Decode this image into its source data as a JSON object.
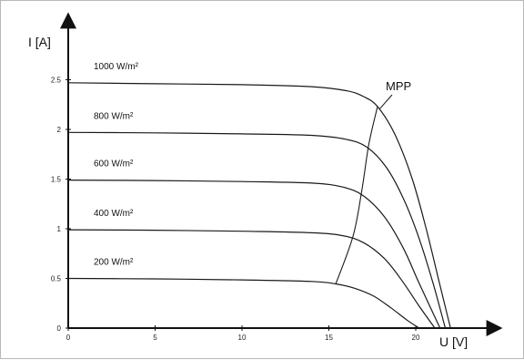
{
  "chart_data": {
    "type": "line",
    "title": "",
    "ylabel": "I [A]",
    "xlabel": "U [V]",
    "xlim": [
      0,
      24.5
    ],
    "ylim": [
      0,
      2.85
    ],
    "x_ticks": [
      {
        "value": 0,
        "label": "0"
      },
      {
        "value": 5,
        "label": "5"
      },
      {
        "value": 10,
        "label": "10"
      },
      {
        "value": 15,
        "label": "15"
      },
      {
        "value": 20,
        "label": "20"
      }
    ],
    "y_ticks": [
      {
        "value": 0,
        "label": "0"
      },
      {
        "value": 0.5,
        "label": "0.5"
      },
      {
        "value": 1,
        "label": "1"
      },
      {
        "value": 1.5,
        "label": "1.5"
      },
      {
        "value": 2,
        "label": "2"
      },
      {
        "value": 2.5,
        "label": "2.5"
      }
    ],
    "grid": false,
    "series": [
      {
        "name": "1000 W/m²",
        "isc": 2.47,
        "voc": 22.0,
        "points": [
          [
            0,
            2.47
          ],
          [
            5,
            2.46
          ],
          [
            10,
            2.45
          ],
          [
            14,
            2.43
          ],
          [
            16,
            2.39
          ],
          [
            17,
            2.33
          ],
          [
            17.8,
            2.23
          ],
          [
            18.8,
            1.95
          ],
          [
            19.8,
            1.5
          ],
          [
            20.6,
            1.0
          ],
          [
            21.3,
            0.5
          ],
          [
            22.0,
            0
          ]
        ]
      },
      {
        "name": "800 W/m²",
        "isc": 1.97,
        "voc": 21.7,
        "points": [
          [
            0,
            1.97
          ],
          [
            5,
            1.965
          ],
          [
            10,
            1.955
          ],
          [
            14,
            1.94
          ],
          [
            16,
            1.9
          ],
          [
            17.2,
            1.82
          ],
          [
            18.3,
            1.62
          ],
          [
            19.3,
            1.3
          ],
          [
            20.2,
            0.9
          ],
          [
            21.0,
            0.45
          ],
          [
            21.7,
            0
          ]
        ]
      },
      {
        "name": "600 W/m²",
        "isc": 1.49,
        "voc": 21.4,
        "points": [
          [
            0,
            1.49
          ],
          [
            5,
            1.485
          ],
          [
            10,
            1.475
          ],
          [
            14,
            1.46
          ],
          [
            15.8,
            1.42
          ],
          [
            17.0,
            1.33
          ],
          [
            18.2,
            1.12
          ],
          [
            19.3,
            0.8
          ],
          [
            20.2,
            0.45
          ],
          [
            21.4,
            0
          ]
        ]
      },
      {
        "name": "400 W/m²",
        "isc": 0.99,
        "voc": 21.1,
        "points": [
          [
            0,
            0.99
          ],
          [
            5,
            0.985
          ],
          [
            10,
            0.975
          ],
          [
            14,
            0.96
          ],
          [
            15.8,
            0.93
          ],
          [
            17.0,
            0.86
          ],
          [
            18.2,
            0.7
          ],
          [
            19.2,
            0.48
          ],
          [
            20.2,
            0.22
          ],
          [
            21.1,
            0
          ]
        ]
      },
      {
        "name": "200 W/m²",
        "isc": 0.5,
        "voc": 20.2,
        "points": [
          [
            0,
            0.5
          ],
          [
            5,
            0.495
          ],
          [
            10,
            0.485
          ],
          [
            14,
            0.47
          ],
          [
            15.4,
            0.445
          ],
          [
            16.5,
            0.4
          ],
          [
            17.6,
            0.32
          ],
          [
            18.6,
            0.2
          ],
          [
            19.5,
            0.08
          ],
          [
            20.2,
            0
          ]
        ]
      }
    ],
    "mpp_curve": {
      "name": "MPP",
      "points": [
        [
          15.4,
          0.445
        ],
        [
          16.4,
          0.93
        ],
        [
          16.9,
          1.39
        ],
        [
          17.3,
          1.85
        ],
        [
          17.8,
          2.23
        ]
      ]
    },
    "annotations": [
      {
        "text": "MPP"
      }
    ]
  }
}
